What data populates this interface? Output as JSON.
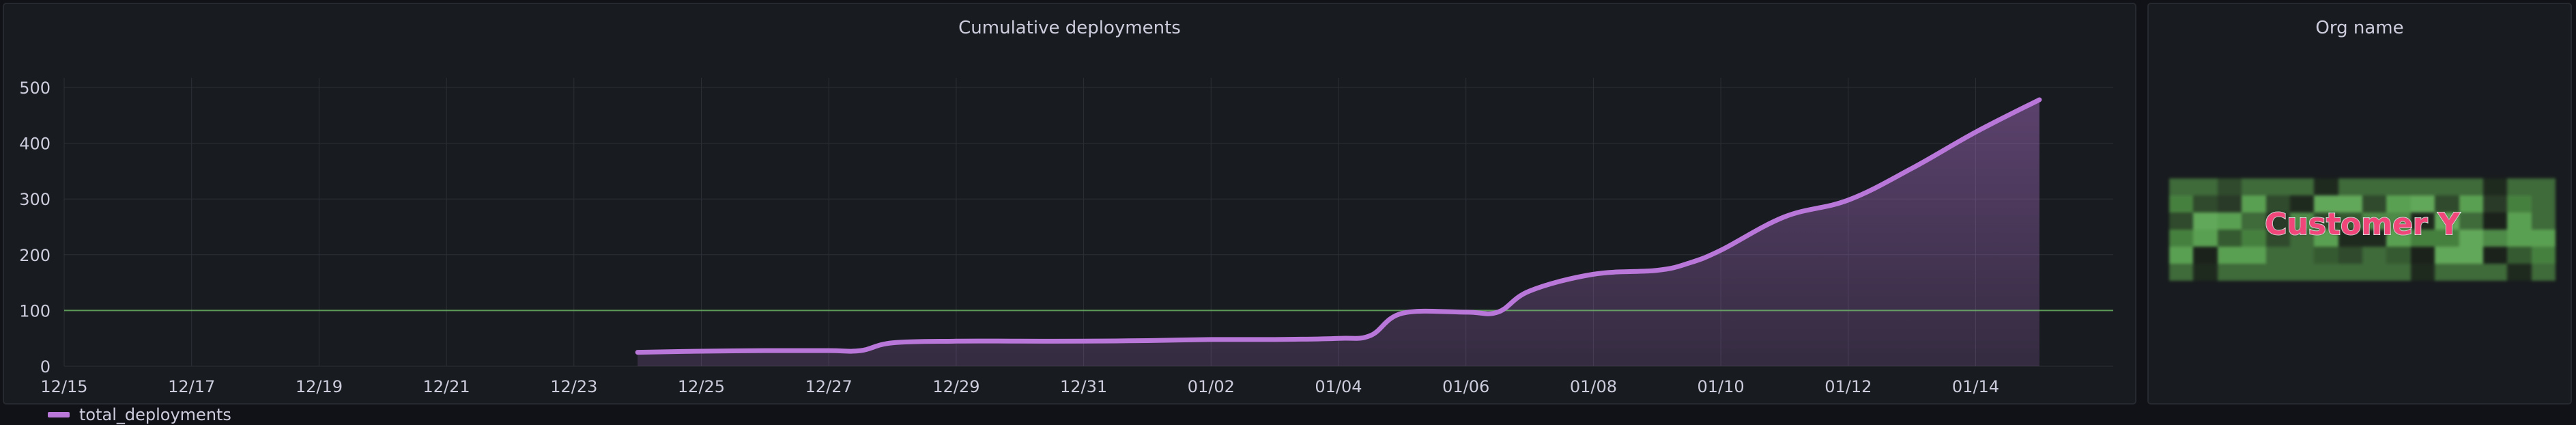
{
  "chart_panel": {
    "title": "Cumulative deployments"
  },
  "org_panel": {
    "title": "Org name",
    "value": "Customer Y"
  },
  "colors": {
    "background": "#111217",
    "panel": "#181b1f",
    "series": "#b877d9",
    "threshold": "#73bf69",
    "grid": "#2c3036"
  },
  "chart_data": {
    "type": "area",
    "title": "Cumulative deployments",
    "xlabel": "",
    "ylabel": "",
    "x_ticks": [
      "12/15",
      "12/17",
      "12/19",
      "12/21",
      "12/23",
      "12/25",
      "12/27",
      "12/29",
      "12/31",
      "01/02",
      "01/04",
      "01/06",
      "01/08",
      "01/10",
      "01/12",
      "01/14"
    ],
    "y_ticks": [
      0,
      100,
      200,
      300,
      400,
      500
    ],
    "ylim": [
      0,
      500
    ],
    "grid": true,
    "legend": "bottom-left",
    "threshold": 100,
    "series": [
      {
        "name": "total_deployments",
        "x": [
          "12/24",
          "12/25",
          "12/26",
          "12/27",
          "12/27 12:00",
          "12/28",
          "12/29",
          "12/30",
          "12/31",
          "01/01",
          "01/02",
          "01/03",
          "01/04",
          "01/04 12:00",
          "01/05",
          "01/06",
          "01/06 12:00",
          "01/07",
          "01/08",
          "01/09",
          "01/09 12:00",
          "01/10",
          "01/11",
          "01/12",
          "01/13",
          "01/14",
          "01/15"
        ],
        "values": [
          25,
          27,
          28,
          28,
          28,
          42,
          45,
          45,
          45,
          46,
          48,
          48,
          50,
          55,
          95,
          97,
          97,
          135,
          165,
          172,
          185,
          208,
          268,
          298,
          355,
          420,
          478
        ]
      }
    ]
  }
}
